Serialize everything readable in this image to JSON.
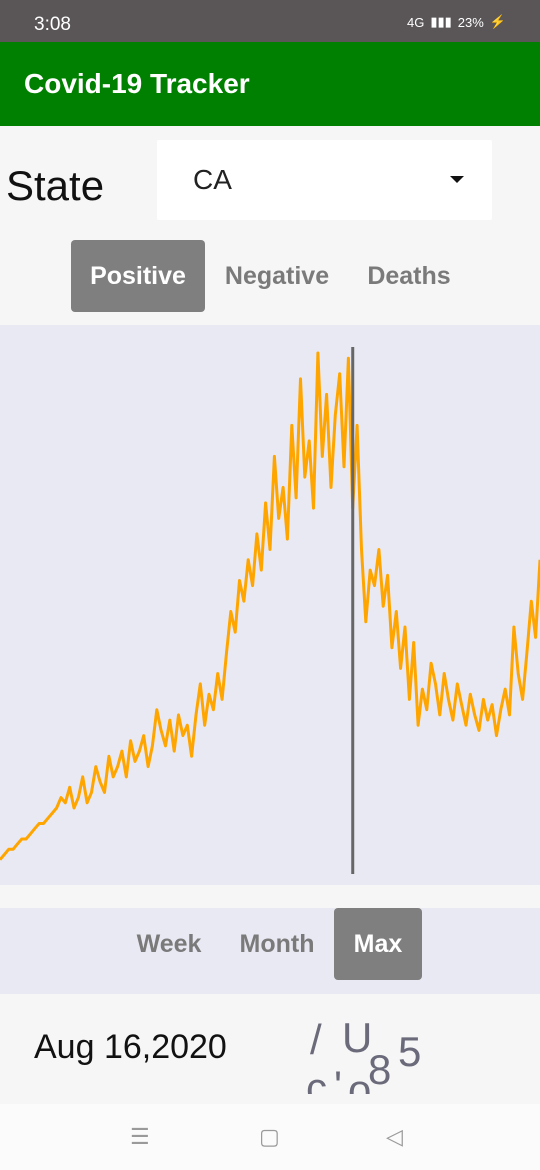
{
  "status_bar": {
    "time": "3:08",
    "network": "4G",
    "battery": "23%"
  },
  "app": {
    "title": "Covid-19 Tracker",
    "accent": "#008000"
  },
  "state_selector": {
    "label": "State",
    "value": "CA"
  },
  "metric_tabs": [
    {
      "label": "Positive",
      "active": true
    },
    {
      "label": "Negative",
      "active": false
    },
    {
      "label": "Deaths",
      "active": false
    }
  ],
  "range_tabs": [
    {
      "label": "Week",
      "active": false
    },
    {
      "label": "Month",
      "active": false
    },
    {
      "label": "Max",
      "active": true
    }
  ],
  "info": {
    "date": "Aug 16,2020",
    "count_fragments": [
      "/",
      "U",
      "c",
      "'",
      "o",
      "8",
      "5"
    ]
  },
  "chart_data": {
    "type": "line",
    "series": [
      {
        "values": [
          0.02,
          0.03,
          0.04,
          0.04,
          0.05,
          0.06,
          0.06,
          0.07,
          0.08,
          0.09,
          0.09,
          0.1,
          0.11,
          0.12,
          0.14,
          0.13,
          0.16,
          0.12,
          0.14,
          0.18,
          0.13,
          0.15,
          0.2,
          0.17,
          0.15,
          0.22,
          0.18,
          0.2,
          0.23,
          0.18,
          0.25,
          0.21,
          0.23,
          0.26,
          0.2,
          0.24,
          0.31,
          0.27,
          0.24,
          0.29,
          0.23,
          0.3,
          0.26,
          0.28,
          0.22,
          0.3,
          0.36,
          0.28,
          0.34,
          0.31,
          0.38,
          0.33,
          0.42,
          0.5,
          0.46,
          0.56,
          0.52,
          0.6,
          0.55,
          0.65,
          0.58,
          0.71,
          0.62,
          0.8,
          0.68,
          0.74,
          0.64,
          0.86,
          0.72,
          0.95,
          0.76,
          0.83,
          0.7,
          1.0,
          0.8,
          0.92,
          0.74,
          0.88,
          0.96,
          0.78,
          0.99,
          0.7,
          0.86,
          0.62,
          0.48,
          0.58,
          0.55,
          0.62,
          0.51,
          0.57,
          0.43,
          0.5,
          0.39,
          0.47,
          0.33,
          0.44,
          0.28,
          0.35,
          0.31,
          0.4,
          0.36,
          0.3,
          0.38,
          0.33,
          0.29,
          0.36,
          0.32,
          0.28,
          0.34,
          0.3,
          0.27,
          0.33,
          0.29,
          0.32,
          0.26,
          0.31,
          0.35,
          0.3,
          0.47,
          0.38,
          0.33,
          0.42,
          0.52,
          0.45,
          0.6
        ]
      }
    ],
    "marker_index": 81,
    "line_color": "#ffa500",
    "marker_color": "#666666"
  }
}
